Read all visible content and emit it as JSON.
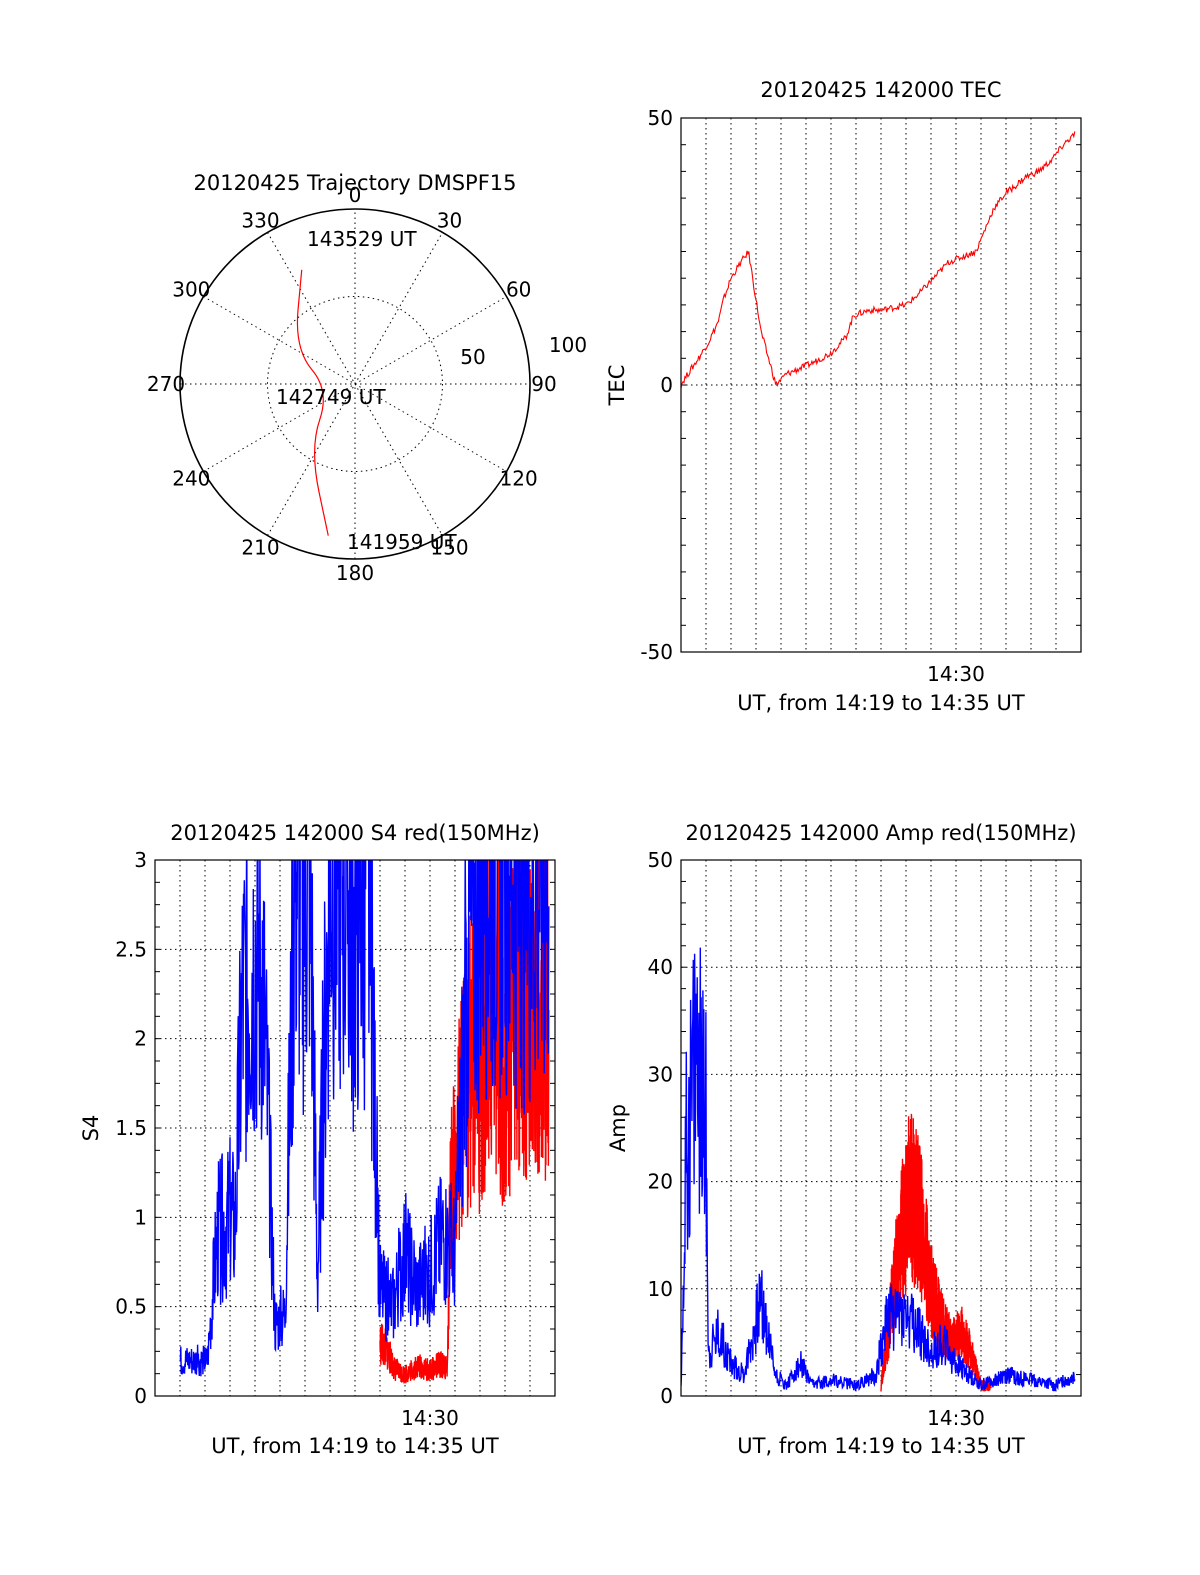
{
  "chart_data": [
    {
      "type": "polar",
      "title": "20120425 Trajectory DMSPF15",
      "angle_labels": [
        "0",
        "30",
        "60",
        "90",
        "120",
        "150",
        "180",
        "210",
        "240",
        "270",
        "300",
        "330"
      ],
      "radius_labels": [
        "50",
        "100"
      ],
      "series": [
        {
          "color": "#ff0000",
          "points": [
            [
              335,
              72
            ],
            [
              300,
              40
            ],
            [
              255,
              15
            ],
            [
              215,
              45
            ],
            [
              190,
              88
            ]
          ]
        }
      ],
      "annotations": [
        "143529 UT",
        "142749 UT",
        "141959 UT"
      ]
    },
    {
      "type": "line",
      "title": "20120425 142000 TEC",
      "ylabel": "TEC",
      "xlabel": "UT, from 14:19 to 14:35 UT",
      "x_tick_label": "14:30",
      "ylim": [
        -50,
        50
      ],
      "yticks": [
        "-50",
        "0",
        "50"
      ],
      "grid": true,
      "series": [
        {
          "color": "#ff0000",
          "x": [
            0.0,
            0.12,
            0.7,
            1.1,
            1.5,
            1.7,
            2.0,
            2.4,
            2.7,
            3.2,
            3.8,
            4.2,
            5.2,
            6.0,
            6.6,
            6.9,
            7.5,
            8.0,
            9.0,
            9.5,
            10.7,
            11.8,
            12.5,
            13.0,
            13.3,
            13.8,
            14.3,
            14.8,
            15.3,
            15.75
          ],
          "y": [
            0,
            1,
            5,
            8,
            12,
            16,
            20,
            23,
            25,
            10,
            0,
            2,
            4,
            6,
            9,
            13,
            14,
            14,
            15,
            17,
            23,
            25,
            33,
            36,
            37,
            39,
            40,
            42,
            45,
            47
          ]
        }
      ]
    },
    {
      "type": "line",
      "title": "20120425 142000 S4 red(150MHz)",
      "ylabel": "S4",
      "xlabel": "UT, from 14:19 to 14:35 UT",
      "x_tick_label": "14:30",
      "ylim": [
        0,
        3
      ],
      "yticks": [
        "0",
        "0.5",
        "1",
        "1.5",
        "2",
        "2.5",
        "3"
      ],
      "grid": true,
      "series": [
        {
          "color": "#ff0000",
          "name": "",
          "x": [
            9.0,
            9.3,
            9.6,
            10.0,
            10.5,
            11.0,
            11.4,
            11.7,
            11.8,
            12.0,
            12.3,
            12.6,
            13.0,
            13.5,
            14.0,
            14.5,
            15.0,
            15.75
          ],
          "y": [
            0.3,
            0.25,
            0.15,
            0.12,
            0.17,
            0.14,
            0.18,
            0.15,
            1.1,
            1.3,
            1.6,
            1.9,
            1.7,
            2.4,
            1.8,
            2.3,
            2.1,
            2.2
          ]
        },
        {
          "color": "#0000ff",
          "name": "",
          "x": [
            1.0,
            2.1,
            2.5,
            3.0,
            3.2,
            3.5,
            4.0,
            4.3,
            4.8,
            5.2,
            5.6,
            5.9,
            6.2,
            6.5,
            7.0,
            7.5,
            8.0,
            8.5,
            9.0,
            9.5,
            10.0,
            10.5,
            11.0,
            11.5,
            12.0,
            12.5,
            13.0,
            14.0,
            15.0,
            15.75
          ],
          "y": [
            0.2,
            0.2,
            0.9,
            1.0,
            0.95,
            2.2,
            2.5,
            2.4,
            0.4,
            0.45,
            3.0,
            2.8,
            3.0,
            0.65,
            3.0,
            2.9,
            2.6,
            3.0,
            0.6,
            0.5,
            0.8,
            0.6,
            0.7,
            0.9,
            0.8,
            2.4,
            2.9,
            3.0,
            2.8,
            3.0
          ]
        }
      ]
    },
    {
      "type": "line",
      "title": "20120425 142000 Amp red(150MHz)",
      "ylabel": "Amp",
      "xlabel": "UT, from 14:19 to 14:35 UT",
      "x_tick_label": "14:30",
      "ylim": [
        0,
        50
      ],
      "yticks": [
        "0",
        "10",
        "20",
        "30",
        "40",
        "50"
      ],
      "grid": true,
      "series": [
        {
          "color": "#ff0000",
          "name": "",
          "x": [
            8.0,
            8.4,
            8.8,
            9.2,
            9.6,
            10.0,
            10.4,
            10.8,
            11.2,
            11.6,
            12.0,
            12.4
          ],
          "y": [
            1,
            8,
            15,
            19,
            16,
            10,
            7,
            5,
            6,
            4,
            1,
            1
          ]
        },
        {
          "color": "#0000ff",
          "name": "",
          "x": [
            0.0,
            0.2,
            0.6,
            1.0,
            1.1,
            1.5,
            2.0,
            2.5,
            3.2,
            3.8,
            4.2,
            4.8,
            5.2,
            6.0,
            7.0,
            7.8,
            8.2,
            8.8,
            9.5,
            10.0,
            10.5,
            11.0,
            11.5,
            12.0,
            13.0,
            14.0,
            15.0,
            15.75
          ],
          "y": [
            0.5,
            22,
            33,
            25,
            4,
            6,
            3,
            2,
            9,
            2,
            1,
            3,
            1,
            1.5,
            1,
            2,
            7,
            8,
            6,
            4,
            5,
            3,
            2,
            1,
            2,
            1.5,
            1,
            2
          ]
        }
      ]
    }
  ]
}
